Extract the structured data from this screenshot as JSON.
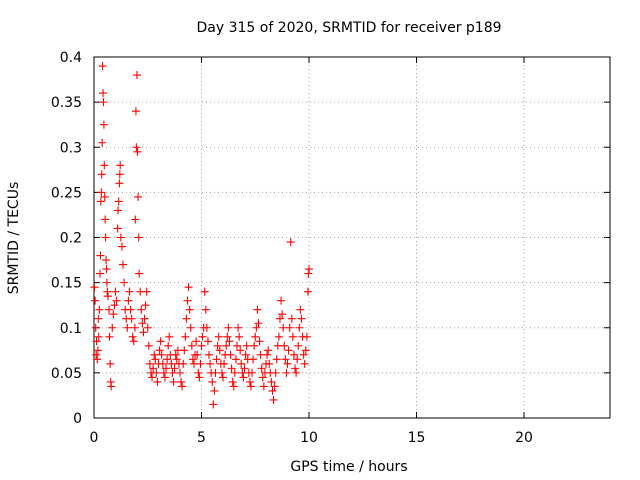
{
  "chart_data": {
    "type": "scatter",
    "title": "Day 315 of 2020, SRMTID for receiver p189",
    "xlabel": "GPS time / hours",
    "ylabel": "SRMTID / TECUs",
    "xlim": [
      0,
      24
    ],
    "ylim": [
      0,
      0.4
    ],
    "xticks": [
      0,
      5,
      10,
      15,
      20
    ],
    "xtick_labels": [
      "0",
      "5",
      "10",
      "15",
      "20"
    ],
    "yticks": [
      0,
      0.05,
      0.1,
      0.15,
      0.2,
      0.25,
      0.3,
      0.35,
      0.4
    ],
    "ytick_labels": [
      "0",
      "0.05",
      "0.1",
      "0.15",
      "0.2",
      "0.25",
      "0.3",
      "0.35",
      "0.4"
    ],
    "grid": true,
    "marker": "+",
    "series_color": "#ff0000",
    "series": [
      {
        "name": "SRMTID",
        "points": [
          [
            0.02,
            0.145
          ],
          [
            0.05,
            0.13
          ],
          [
            0.08,
            0.1
          ],
          [
            0.1,
            0.07
          ],
          [
            0.12,
            0.085
          ],
          [
            0.15,
            0.065
          ],
          [
            0.18,
            0.075
          ],
          [
            0.2,
            0.11
          ],
          [
            0.22,
            0.09
          ],
          [
            0.25,
            0.12
          ],
          [
            0.28,
            0.16
          ],
          [
            0.3,
            0.18
          ],
          [
            0.32,
            0.24
          ],
          [
            0.34,
            0.25
          ],
          [
            0.36,
            0.27
          ],
          [
            0.38,
            0.305
          ],
          [
            0.4,
            0.39
          ],
          [
            0.42,
            0.36
          ],
          [
            0.44,
            0.35
          ],
          [
            0.46,
            0.325
          ],
          [
            0.48,
            0.28
          ],
          [
            0.5,
            0.245
          ],
          [
            0.52,
            0.22
          ],
          [
            0.54,
            0.2
          ],
          [
            0.56,
            0.175
          ],
          [
            0.58,
            0.165
          ],
          [
            0.6,
            0.15
          ],
          [
            0.62,
            0.14
          ],
          [
            0.65,
            0.135
          ],
          [
            0.7,
            0.12
          ],
          [
            0.72,
            0.09
          ],
          [
            0.75,
            0.06
          ],
          [
            0.78,
            0.04
          ],
          [
            0.8,
            0.035
          ],
          [
            0.85,
            0.1
          ],
          [
            0.9,
            0.115
          ],
          [
            0.95,
            0.125
          ],
          [
            1.0,
            0.14
          ],
          [
            1.05,
            0.13
          ],
          [
            1.1,
            0.21
          ],
          [
            1.12,
            0.23
          ],
          [
            1.15,
            0.24
          ],
          [
            1.18,
            0.26
          ],
          [
            1.2,
            0.27
          ],
          [
            1.22,
            0.28
          ],
          [
            1.25,
            0.2
          ],
          [
            1.3,
            0.19
          ],
          [
            1.35,
            0.17
          ],
          [
            1.4,
            0.15
          ],
          [
            1.45,
            0.12
          ],
          [
            1.5,
            0.11
          ],
          [
            1.55,
            0.1
          ],
          [
            1.6,
            0.13
          ],
          [
            1.65,
            0.14
          ],
          [
            1.7,
            0.12
          ],
          [
            1.75,
            0.11
          ],
          [
            1.8,
            0.09
          ],
          [
            1.85,
            0.085
          ],
          [
            1.9,
            0.1
          ],
          [
            1.92,
            0.22
          ],
          [
            1.95,
            0.34
          ],
          [
            1.97,
            0.3
          ],
          [
            2.0,
            0.38
          ],
          [
            2.02,
            0.295
          ],
          [
            2.05,
            0.245
          ],
          [
            2.08,
            0.2
          ],
          [
            2.1,
            0.16
          ],
          [
            2.15,
            0.14
          ],
          [
            2.2,
            0.12
          ],
          [
            2.25,
            0.105
          ],
          [
            2.3,
            0.095
          ],
          [
            2.35,
            0.11
          ],
          [
            2.4,
            0.125
          ],
          [
            2.45,
            0.14
          ],
          [
            2.5,
            0.1
          ],
          [
            2.55,
            0.08
          ],
          [
            2.6,
            0.06
          ],
          [
            2.65,
            0.05
          ],
          [
            2.7,
            0.045
          ],
          [
            2.75,
            0.055
          ],
          [
            2.8,
            0.07
          ],
          [
            2.85,
            0.065
          ],
          [
            2.9,
            0.05
          ],
          [
            2.95,
            0.04
          ],
          [
            3.0,
            0.06
          ],
          [
            3.05,
            0.075
          ],
          [
            3.1,
            0.085
          ],
          [
            3.15,
            0.07
          ],
          [
            3.2,
            0.06
          ],
          [
            3.25,
            0.05
          ],
          [
            3.3,
            0.045
          ],
          [
            3.35,
            0.055
          ],
          [
            3.4,
            0.065
          ],
          [
            3.45,
            0.08
          ],
          [
            3.5,
            0.09
          ],
          [
            3.55,
            0.07
          ],
          [
            3.6,
            0.06
          ],
          [
            3.65,
            0.05
          ],
          [
            3.7,
            0.04
          ],
          [
            3.75,
            0.055
          ],
          [
            3.8,
            0.07
          ],
          [
            3.85,
            0.065
          ],
          [
            3.9,
            0.075
          ],
          [
            3.95,
            0.06
          ],
          [
            4.0,
            0.05
          ],
          [
            4.05,
            0.04
          ],
          [
            4.1,
            0.035
          ],
          [
            4.15,
            0.06
          ],
          [
            4.2,
            0.075
          ],
          [
            4.25,
            0.09
          ],
          [
            4.3,
            0.11
          ],
          [
            4.35,
            0.13
          ],
          [
            4.4,
            0.145
          ],
          [
            4.45,
            0.12
          ],
          [
            4.5,
            0.1
          ],
          [
            4.55,
            0.08
          ],
          [
            4.6,
            0.065
          ],
          [
            4.65,
            0.06
          ],
          [
            4.7,
            0.07
          ],
          [
            4.75,
            0.085
          ],
          [
            4.8,
            0.07
          ],
          [
            4.85,
            0.05
          ],
          [
            4.9,
            0.045
          ],
          [
            4.95,
            0.06
          ],
          [
            5.0,
            0.08
          ],
          [
            5.05,
            0.09
          ],
          [
            5.1,
            0.1
          ],
          [
            5.15,
            0.14
          ],
          [
            5.2,
            0.12
          ],
          [
            5.25,
            0.1
          ],
          [
            5.3,
            0.085
          ],
          [
            5.35,
            0.07
          ],
          [
            5.4,
            0.06
          ],
          [
            5.45,
            0.05
          ],
          [
            5.5,
            0.04
          ],
          [
            5.55,
            0.015
          ],
          [
            5.6,
            0.03
          ],
          [
            5.65,
            0.05
          ],
          [
            5.7,
            0.065
          ],
          [
            5.75,
            0.08
          ],
          [
            5.8,
            0.09
          ],
          [
            5.85,
            0.075
          ],
          [
            5.9,
            0.06
          ],
          [
            5.95,
            0.05
          ],
          [
            6.0,
            0.045
          ],
          [
            6.05,
            0.06
          ],
          [
            6.1,
            0.07
          ],
          [
            6.15,
            0.08
          ],
          [
            6.2,
            0.09
          ],
          [
            6.25,
            0.1
          ],
          [
            6.3,
            0.085
          ],
          [
            6.35,
            0.07
          ],
          [
            6.4,
            0.055
          ],
          [
            6.45,
            0.04
          ],
          [
            6.5,
            0.035
          ],
          [
            6.55,
            0.05
          ],
          [
            6.6,
            0.065
          ],
          [
            6.65,
            0.08
          ],
          [
            6.7,
            0.1
          ],
          [
            6.75,
            0.09
          ],
          [
            6.8,
            0.075
          ],
          [
            6.85,
            0.06
          ],
          [
            6.9,
            0.05
          ],
          [
            6.95,
            0.045
          ],
          [
            7.0,
            0.055
          ],
          [
            7.05,
            0.07
          ],
          [
            7.1,
            0.08
          ],
          [
            7.15,
            0.065
          ],
          [
            7.2,
            0.05
          ],
          [
            7.25,
            0.04
          ],
          [
            7.3,
            0.035
          ],
          [
            7.35,
            0.05
          ],
          [
            7.4,
            0.065
          ],
          [
            7.45,
            0.08
          ],
          [
            7.5,
            0.09
          ],
          [
            7.55,
            0.1
          ],
          [
            7.6,
            0.12
          ],
          [
            7.65,
            0.105
          ],
          [
            7.7,
            0.085
          ],
          [
            7.75,
            0.07
          ],
          [
            7.8,
            0.055
          ],
          [
            7.85,
            0.045
          ],
          [
            7.9,
            0.035
          ],
          [
            7.95,
            0.05
          ],
          [
            8.0,
            0.06
          ],
          [
            8.05,
            0.07
          ],
          [
            8.1,
            0.075
          ],
          [
            8.15,
            0.06
          ],
          [
            8.2,
            0.05
          ],
          [
            8.25,
            0.04
          ],
          [
            8.3,
            0.03
          ],
          [
            8.35,
            0.02
          ],
          [
            8.4,
            0.035
          ],
          [
            8.45,
            0.05
          ],
          [
            8.5,
            0.065
          ],
          [
            8.55,
            0.08
          ],
          [
            8.6,
            0.09
          ],
          [
            8.65,
            0.11
          ],
          [
            8.7,
            0.13
          ],
          [
            8.75,
            0.115
          ],
          [
            8.8,
            0.1
          ],
          [
            8.85,
            0.08
          ],
          [
            8.9,
            0.065
          ],
          [
            8.95,
            0.05
          ],
          [
            9.0,
            0.06
          ],
          [
            9.05,
            0.075
          ],
          [
            9.1,
            0.1
          ],
          [
            9.15,
            0.195
          ],
          [
            9.2,
            0.11
          ],
          [
            9.25,
            0.09
          ],
          [
            9.3,
            0.07
          ],
          [
            9.35,
            0.055
          ],
          [
            9.4,
            0.05
          ],
          [
            9.45,
            0.065
          ],
          [
            9.5,
            0.08
          ],
          [
            9.55,
            0.1
          ],
          [
            9.6,
            0.12
          ],
          [
            9.65,
            0.11
          ],
          [
            9.7,
            0.09
          ],
          [
            9.75,
            0.07
          ],
          [
            9.8,
            0.06
          ],
          [
            9.85,
            0.075
          ],
          [
            9.9,
            0.09
          ],
          [
            9.95,
            0.14
          ],
          [
            9.97,
            0.16
          ],
          [
            10.0,
            0.165
          ]
        ]
      }
    ]
  }
}
